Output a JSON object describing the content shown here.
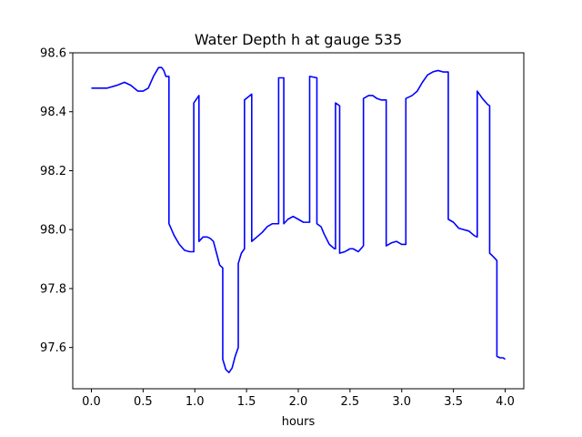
{
  "chart_data": {
    "type": "line",
    "title": "Water Depth h at gauge 535",
    "xlabel": "hours",
    "ylabel": "",
    "xlim": [
      -0.18,
      4.18
    ],
    "ylim": [
      97.46,
      98.6
    ],
    "xticks": [
      0.0,
      0.5,
      1.0,
      1.5,
      2.0,
      2.5,
      3.0,
      3.5,
      4.0
    ],
    "xtick_labels": [
      "0.0",
      "0.5",
      "1.0",
      "1.5",
      "2.0",
      "2.5",
      "3.0",
      "3.5",
      "4.0"
    ],
    "yticks": [
      97.6,
      97.8,
      98.0,
      98.2,
      98.4,
      98.6
    ],
    "ytick_labels": [
      "97.6",
      "97.8",
      "98.0",
      "98.2",
      "98.4",
      "98.6"
    ],
    "grid": false,
    "series": [
      {
        "color": "#0000ff",
        "x": [
          0.0,
          0.15,
          0.25,
          0.32,
          0.38,
          0.45,
          0.5,
          0.55,
          0.6,
          0.65,
          0.68,
          0.7,
          0.72,
          0.75,
          0.75,
          0.8,
          0.85,
          0.9,
          0.95,
          0.99,
          0.99,
          1.04,
          1.04,
          1.08,
          1.12,
          1.15,
          1.18,
          1.21,
          1.24,
          1.27,
          1.27,
          1.3,
          1.33,
          1.36,
          1.39,
          1.42,
          1.42,
          1.45,
          1.48,
          1.48,
          1.55,
          1.55,
          1.6,
          1.65,
          1.7,
          1.75,
          1.8,
          1.81,
          1.81,
          1.86,
          1.86,
          1.9,
          1.95,
          2.0,
          2.05,
          2.1,
          2.11,
          2.11,
          2.18,
          2.18,
          2.22,
          2.25,
          2.3,
          2.35,
          2.36,
          2.36,
          2.4,
          2.4,
          2.45,
          2.5,
          2.53,
          2.58,
          2.63,
          2.63,
          2.68,
          2.72,
          2.76,
          2.8,
          2.85,
          2.85,
          2.9,
          2.95,
          3.0,
          3.04,
          3.04,
          3.1,
          3.15,
          3.2,
          3.25,
          3.3,
          3.35,
          3.4,
          3.45,
          3.45,
          3.5,
          3.55,
          3.6,
          3.65,
          3.7,
          3.73,
          3.73,
          3.78,
          3.83,
          3.85,
          3.85,
          3.88,
          3.92,
          3.92,
          3.95,
          3.98,
          4.0
        ],
        "y": [
          98.48,
          98.48,
          98.49,
          98.5,
          98.49,
          98.47,
          98.47,
          98.48,
          98.52,
          98.55,
          98.55,
          98.54,
          98.52,
          98.52,
          98.02,
          97.98,
          97.95,
          97.93,
          97.925,
          97.925,
          98.43,
          98.455,
          97.96,
          97.975,
          97.975,
          97.97,
          97.96,
          97.92,
          97.88,
          97.87,
          97.56,
          97.525,
          97.515,
          97.53,
          97.57,
          97.6,
          97.885,
          97.92,
          97.935,
          98.44,
          98.46,
          97.96,
          97.975,
          97.99,
          98.01,
          98.02,
          98.02,
          98.02,
          98.515,
          98.515,
          98.02,
          98.035,
          98.045,
          98.035,
          98.025,
          98.025,
          98.025,
          98.52,
          98.515,
          98.02,
          98.01,
          97.985,
          97.95,
          97.935,
          97.935,
          98.43,
          98.42,
          97.92,
          97.925,
          97.935,
          97.935,
          97.925,
          97.945,
          98.445,
          98.455,
          98.455,
          98.445,
          98.44,
          98.44,
          97.945,
          97.955,
          97.96,
          97.95,
          97.95,
          98.445,
          98.455,
          98.47,
          98.5,
          98.525,
          98.535,
          98.54,
          98.535,
          98.535,
          98.035,
          98.025,
          98.005,
          98.0,
          97.995,
          97.98,
          97.975,
          98.47,
          98.445,
          98.425,
          98.42,
          97.92,
          97.91,
          97.895,
          97.57,
          97.565,
          97.565,
          97.56
        ]
      }
    ]
  }
}
